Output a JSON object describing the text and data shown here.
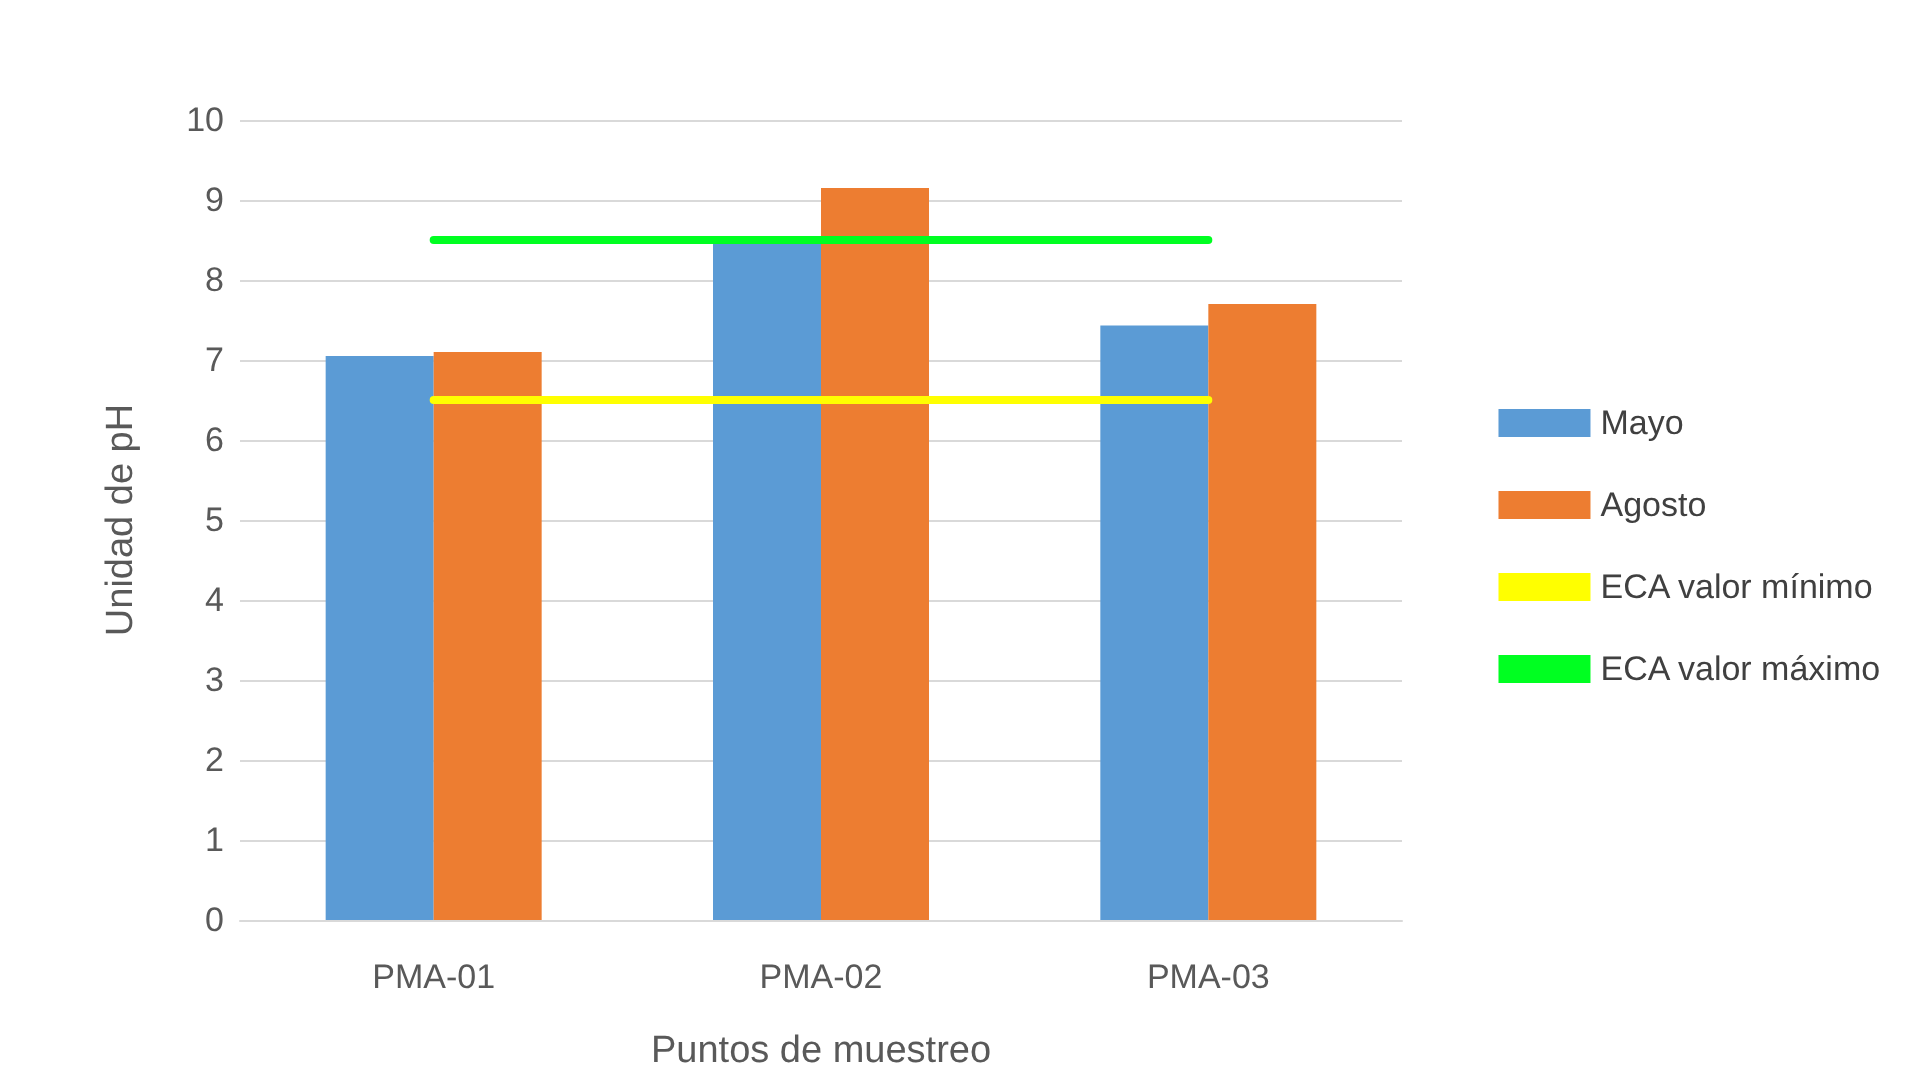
{
  "chart_data": {
    "type": "bar",
    "xlabel": "Puntos de muestreo",
    "ylabel": "Unidad de pH",
    "categories": [
      "PMA-01",
      "PMA-02",
      "PMA-03"
    ],
    "series": [
      {
        "name": "Mayo",
        "color": "#5b9bd5",
        "values": [
          7.05,
          8.45,
          7.43
        ]
      },
      {
        "name": "Agosto",
        "color": "#ed7d31",
        "values": [
          7.1,
          9.15,
          7.7
        ]
      },
      {
        "name": "ECA valor mínimo",
        "type": "line",
        "color": "#ffff00",
        "values": [
          6.5,
          6.5,
          6.5
        ]
      },
      {
        "name": "ECA valor máximo",
        "type": "line",
        "color": "#00ff21",
        "values": [
          8.5,
          8.5,
          8.5
        ]
      }
    ],
    "ylim": [
      0,
      10
    ],
    "yticks": [
      0,
      1,
      2,
      3,
      4,
      5,
      6,
      7,
      8,
      9,
      10
    ],
    "grid": "y",
    "legend": "right",
    "marker": "none"
  }
}
